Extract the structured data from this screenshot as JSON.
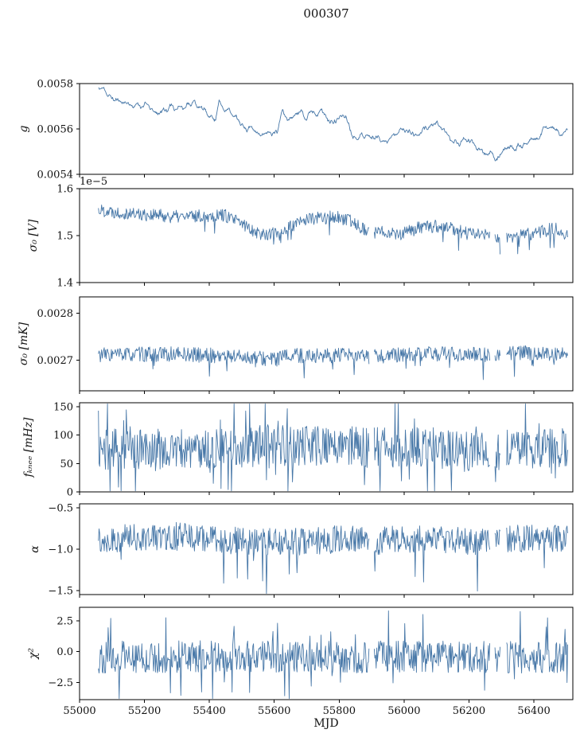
{
  "figure": {
    "title": "000307"
  },
  "chart_data": {
    "type": "line",
    "title": "000307",
    "xlabel": "MJD",
    "xlim": [
      55000,
      56520
    ],
    "xticks": [
      55000,
      55200,
      55400,
      55600,
      55800,
      56000,
      56200,
      56400
    ],
    "xtick_labels": [
      "55000",
      "55200",
      "55400",
      "55600",
      "55800",
      "56000",
      "56200",
      "56400"
    ],
    "x_start": 55058,
    "x_end": 56505,
    "line_color": "#4878a8",
    "axis_color": "#000000",
    "grid": false,
    "legend": "none",
    "gaps": [
      [
        55893,
        55907
      ],
      [
        56265,
        56278
      ],
      [
        56298,
        56314
      ]
    ],
    "panels": [
      {
        "id": "g",
        "ylabel": "g",
        "ylim": [
          0.0054,
          0.0058
        ],
        "yticks": [
          0.0054,
          0.0056,
          0.0058
        ],
        "ytick_labels": [
          "0.0054",
          "0.0056",
          "0.0058"
        ],
        "offset_text": "",
        "noise_amp": 5e-05,
        "smooth": 4,
        "step": 1.5,
        "use_gaps": false,
        "spike_prob": 0,
        "spike_mult": 0,
        "spike_bias": 0,
        "seed": 11,
        "trend": [
          [
            55058,
            0.00577
          ],
          [
            55075,
            0.00578
          ],
          [
            55100,
            0.00573
          ],
          [
            55140,
            0.00572
          ],
          [
            55170,
            0.0057
          ],
          [
            55200,
            0.00571
          ],
          [
            55230,
            0.00567
          ],
          [
            55260,
            0.00568
          ],
          [
            55290,
            0.0057
          ],
          [
            55320,
            0.0057
          ],
          [
            55350,
            0.00572
          ],
          [
            55380,
            0.00568
          ],
          [
            55420,
            0.00565
          ],
          [
            55430,
            0.00572
          ],
          [
            55460,
            0.00568
          ],
          [
            55490,
            0.00563
          ],
          [
            55520,
            0.0056
          ],
          [
            55550,
            0.00559
          ],
          [
            55580,
            0.00558
          ],
          [
            55610,
            0.00561
          ],
          [
            55625,
            0.0057
          ],
          [
            55640,
            0.00563
          ],
          [
            55660,
            0.00566
          ],
          [
            55680,
            0.00568
          ],
          [
            55700,
            0.00566
          ],
          [
            55720,
            0.00569
          ],
          [
            55740,
            0.00568
          ],
          [
            55760,
            0.00566
          ],
          [
            55780,
            0.00562
          ],
          [
            55800,
            0.00565
          ],
          [
            55820,
            0.00566
          ],
          [
            55840,
            0.00558
          ],
          [
            55860,
            0.00557
          ],
          [
            55880,
            0.00558
          ],
          [
            55900,
            0.00556
          ],
          [
            55920,
            0.00557
          ],
          [
            55940,
            0.00555
          ],
          [
            55960,
            0.00556
          ],
          [
            55980,
            0.00558
          ],
          [
            56000,
            0.00561
          ],
          [
            56020,
            0.00559
          ],
          [
            56040,
            0.00557
          ],
          [
            56060,
            0.00559
          ],
          [
            56080,
            0.00562
          ],
          [
            56100,
            0.00561
          ],
          [
            56120,
            0.0056
          ],
          [
            56140,
            0.00556
          ],
          [
            56160,
            0.00554
          ],
          [
            56180,
            0.00554
          ],
          [
            56200,
            0.00555
          ],
          [
            56220,
            0.00553
          ],
          [
            56240,
            0.00552
          ],
          [
            56260,
            0.00549
          ],
          [
            56280,
            0.00547
          ],
          [
            56300,
            0.0055
          ],
          [
            56320,
            0.00552
          ],
          [
            56340,
            0.0055
          ],
          [
            56360,
            0.00553
          ],
          [
            56380,
            0.00553
          ],
          [
            56400,
            0.00554
          ],
          [
            56420,
            0.00557
          ],
          [
            56440,
            0.0056
          ],
          [
            56460,
            0.00561
          ],
          [
            56480,
            0.00557
          ],
          [
            56500,
            0.00559
          ]
        ]
      },
      {
        "id": "sigma0_V",
        "ylabel": "σ₀ [V]",
        "ylim": [
          1.4,
          1.6
        ],
        "yticks": [
          1.4,
          1.5,
          1.6
        ],
        "ytick_labels": [
          "1.4",
          "1.5",
          "1.6"
        ],
        "offset_text": "1e−5",
        "noise_amp": 0.014,
        "smooth": 1,
        "step": 2,
        "use_gaps": true,
        "spike_prob": 0.02,
        "spike_mult": 2.0,
        "spike_bias": -1,
        "seed": 22,
        "trend": [
          [
            55058,
            1.555
          ],
          [
            55120,
            1.55
          ],
          [
            55200,
            1.545
          ],
          [
            55300,
            1.54
          ],
          [
            55380,
            1.542
          ],
          [
            55440,
            1.545
          ],
          [
            55500,
            1.525
          ],
          [
            55560,
            1.503
          ],
          [
            55600,
            1.505
          ],
          [
            55640,
            1.515
          ],
          [
            55700,
            1.535
          ],
          [
            55790,
            1.54
          ],
          [
            55850,
            1.527
          ],
          [
            55900,
            1.503
          ],
          [
            55940,
            1.51
          ],
          [
            55990,
            1.503
          ],
          [
            56040,
            1.515
          ],
          [
            56090,
            1.52
          ],
          [
            56140,
            1.517
          ],
          [
            56190,
            1.505
          ],
          [
            56260,
            1.503
          ],
          [
            56310,
            1.495
          ],
          [
            56360,
            1.5
          ],
          [
            56420,
            1.508
          ],
          [
            56460,
            1.515
          ],
          [
            56505,
            1.503
          ]
        ]
      },
      {
        "id": "sigma0_mK",
        "ylabel": "σ₀ [mK]",
        "ylim": [
          0.002635,
          0.002835
        ],
        "yticks": [
          0.0027,
          0.0028
        ],
        "ytick_labels": [
          "0.0027",
          "0.0028"
        ],
        "offset_text": "",
        "noise_amp": 1.6e-05,
        "smooth": 1,
        "step": 2,
        "use_gaps": true,
        "spike_prob": 0.025,
        "spike_mult": 1.9,
        "spike_bias": -1,
        "seed": 33,
        "trend": [
          [
            55058,
            0.002712
          ],
          [
            55300,
            0.002713
          ],
          [
            55500,
            0.002708
          ],
          [
            55600,
            0.002702
          ],
          [
            55650,
            0.00271
          ],
          [
            55800,
            0.00271
          ],
          [
            55900,
            0.002707
          ],
          [
            56000,
            0.002712
          ],
          [
            56100,
            0.002714
          ],
          [
            56200,
            0.002712
          ],
          [
            56300,
            0.002713
          ],
          [
            56400,
            0.002716
          ],
          [
            56505,
            0.002712
          ]
        ]
      },
      {
        "id": "fknee",
        "ylabel": "fₖₙₑₑ [mHz]",
        "ylim": [
          0,
          157
        ],
        "yticks": [
          0,
          50,
          100,
          150
        ],
        "ytick_labels": [
          "0",
          "50",
          "100",
          "150"
        ],
        "offset_text": "",
        "noise_amp": 36,
        "smooth": 1,
        "step": 2,
        "use_gaps": true,
        "spike_prob": 0.08,
        "spike_mult": 1.6,
        "spike_bias": 0,
        "seed": 44,
        "trend": [
          [
            55058,
            75
          ],
          [
            55300,
            74
          ],
          [
            55500,
            76
          ],
          [
            55600,
            85
          ],
          [
            55650,
            80
          ],
          [
            55800,
            82
          ],
          [
            55900,
            78
          ],
          [
            56000,
            80
          ],
          [
            56100,
            78
          ],
          [
            56150,
            72
          ],
          [
            56250,
            70
          ],
          [
            56350,
            78
          ],
          [
            56505,
            77
          ]
        ]
      },
      {
        "id": "alpha",
        "ylabel": "α",
        "ylim": [
          -1.55,
          -0.45
        ],
        "yticks": [
          -1.5,
          -1.0,
          -0.5
        ],
        "ytick_labels": [
          "−1.5",
          "−1.0",
          "−0.5"
        ],
        "offset_text": "",
        "noise_amp": 0.17,
        "smooth": 1,
        "step": 2,
        "use_gaps": true,
        "spike_prob": 0.03,
        "spike_mult": 2.1,
        "spike_bias": -1,
        "seed": 55,
        "trend": [
          [
            55058,
            -0.88
          ],
          [
            55200,
            -0.86
          ],
          [
            55300,
            -0.84
          ],
          [
            55400,
            -0.88
          ],
          [
            55500,
            -0.9
          ],
          [
            55600,
            -0.92
          ],
          [
            55700,
            -0.9
          ],
          [
            55800,
            -0.88
          ],
          [
            55900,
            -0.9
          ],
          [
            56000,
            -0.88
          ],
          [
            56100,
            -0.88
          ],
          [
            56200,
            -0.9
          ],
          [
            56300,
            -0.88
          ],
          [
            56400,
            -0.86
          ],
          [
            56505,
            -0.87
          ]
        ]
      },
      {
        "id": "chi2",
        "ylabel": "χ²",
        "ylim": [
          -3.9,
          3.6
        ],
        "yticks": [
          -2.5,
          0.0,
          2.5
        ],
        "ytick_labels": [
          "−2.5",
          "0.0",
          "2.5"
        ],
        "offset_text": "",
        "noise_amp": 1.3,
        "smooth": 1,
        "step": 2,
        "use_gaps": true,
        "spike_prob": 0.05,
        "spike_mult": 1.7,
        "spike_bias": 0,
        "seed": 66,
        "trend": [
          [
            55058,
            -0.45
          ],
          [
            55400,
            -0.4
          ],
          [
            55700,
            -0.45
          ],
          [
            56000,
            -0.42
          ],
          [
            56300,
            -0.45
          ],
          [
            56505,
            -0.42
          ]
        ]
      }
    ]
  }
}
